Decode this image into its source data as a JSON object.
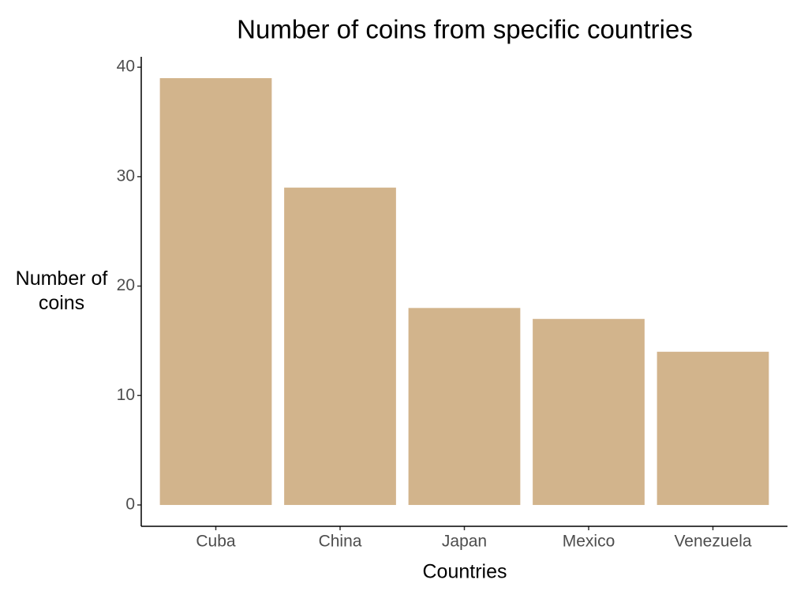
{
  "chart_data": {
    "type": "bar",
    "title": "Number of coins from specific countries",
    "x_label": "Countries",
    "y_label": "Number of coins",
    "categories": [
      "Cuba",
      "China",
      "Japan",
      "Mexico",
      "Venezuela"
    ],
    "values": [
      39,
      29,
      18,
      17,
      14
    ],
    "color": "#d2b48c",
    "ylim": [
      -1.95,
      40.95
    ],
    "yticks": [
      0,
      10,
      20,
      30,
      40
    ],
    "grid": false
  }
}
